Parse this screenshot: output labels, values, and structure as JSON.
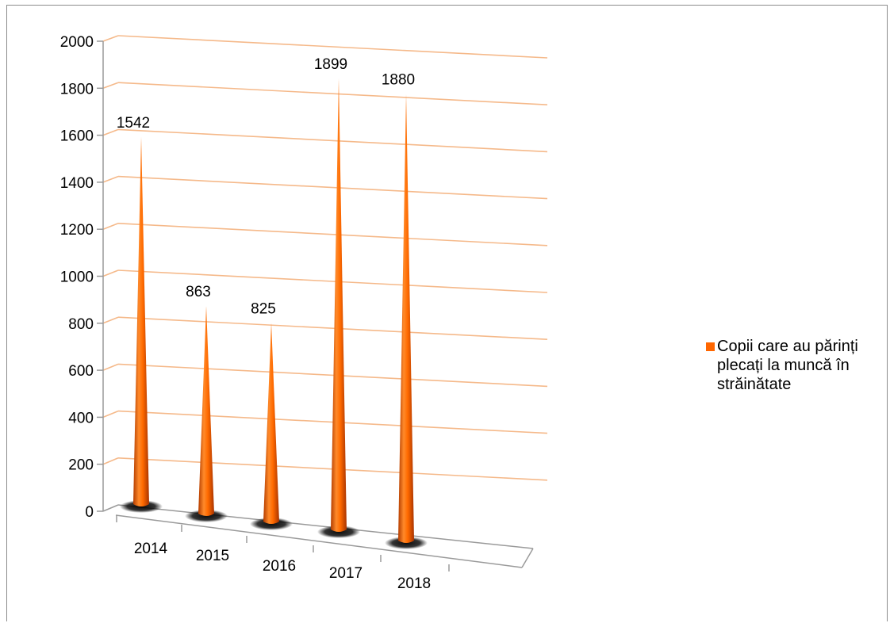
{
  "chart_data": {
    "type": "bar",
    "style": "3d-cone",
    "categories": [
      "2014",
      "2015",
      "2016",
      "2017",
      "2018"
    ],
    "series": [
      {
        "name": "Copii care au părinți plecați la muncă în străinătate",
        "values": [
          1542,
          863,
          825,
          1899,
          1880
        ],
        "color": "#ff6600"
      }
    ],
    "data_labels": [
      "1542",
      "863",
      "825",
      "1899",
      "1880"
    ],
    "yticks": [
      0,
      200,
      400,
      600,
      800,
      1000,
      1200,
      1400,
      1600,
      1800,
      2000
    ],
    "ylim": [
      0,
      2000
    ],
    "grid": true,
    "gridline_color": "#f5b98a",
    "legend_position": "right"
  }
}
